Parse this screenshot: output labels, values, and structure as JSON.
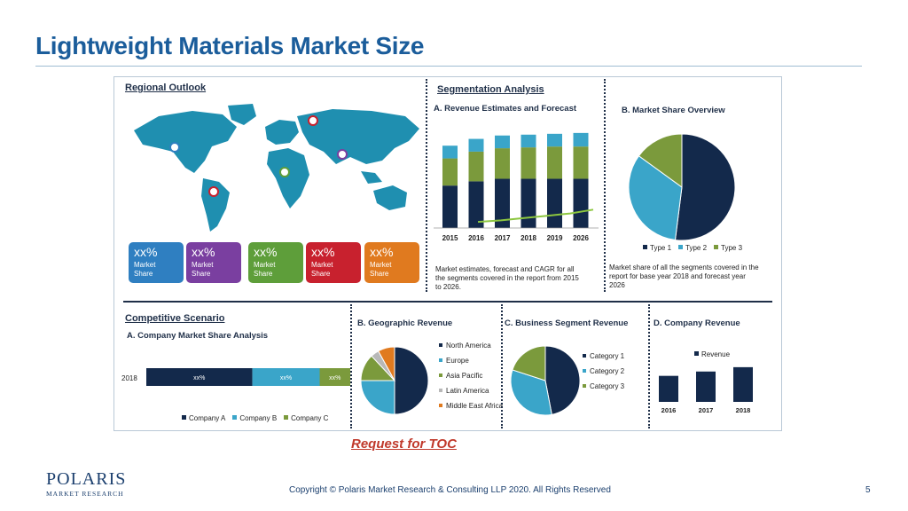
{
  "slide": {
    "title": "Lightweight Materials Market Size",
    "toc_link": "Request for TOC",
    "copyright": "Copyright © Polaris Market Research & Consulting LLP 2020. All Rights Reserved",
    "page_number": "5",
    "logo_main": "POLARIS",
    "logo_sub": "MARKET RESEARCH"
  },
  "regional": {
    "heading": "Regional Outlook",
    "tiles": [
      {
        "value": "xx%",
        "label_1": "Market",
        "label_2": "Share",
        "color": "#2f7fc1"
      },
      {
        "value": "xx%",
        "label_1": "Market",
        "label_2": "Share",
        "color": "#7a3fa0"
      },
      {
        "value": "xx%",
        "label_1": "Market",
        "label_2": "Share",
        "color": "#5e9e3a"
      },
      {
        "value": "xx%",
        "label_1": "Market",
        "label_2": "Share",
        "color": "#c8212e"
      },
      {
        "value": "xx%",
        "label_1": "Market",
        "label_2": "Share",
        "color": "#e07a1f"
      }
    ],
    "map_color": "#1f8fb0"
  },
  "segmentation": {
    "heading": "Segmentation Analysis",
    "revenue_title": "A. Revenue Estimates and Forecast",
    "revenue_caption": [
      "Market estimates, forecast and CAGR for all",
      "the segments covered in the report from 2015",
      "to 2026."
    ],
    "share_title": "B. Market Share Overview",
    "share_caption": [
      "Market share of all the segments covered in the",
      "report for base year 2018 and forecast year",
      "2026"
    ]
  },
  "competitive": {
    "heading": "Competitive Scenario",
    "company_title": "A. Company Market Share Analysis",
    "geo_title": "B. Geographic Revenue",
    "business_title": "C. Business Segment Revenue",
    "revenue_title": "D. Company Revenue"
  },
  "colors": {
    "navy": "#13294b",
    "blue": "#3aa5c9",
    "green": "#7b9a3c",
    "gray": "#b8b8b8",
    "orange": "#e07a1f"
  },
  "chart_data": [
    {
      "type": "bar",
      "id": "revenue_forecast",
      "title": "A. Revenue Estimates and Forecast",
      "categories": [
        "2015",
        "2016",
        "2017",
        "2018",
        "2019",
        "2026"
      ],
      "series": [
        {
          "values": [
            50,
            55,
            58,
            58,
            58,
            58
          ]
        },
        {
          "values": [
            32,
            35,
            36,
            37,
            38,
            38
          ]
        },
        {
          "values": [
            15,
            15,
            15,
            15,
            15,
            16
          ]
        }
      ],
      "trend": [
        8,
        10,
        13,
        16,
        19,
        24
      ],
      "ylim": [
        0,
        115
      ]
    },
    {
      "type": "pie",
      "id": "market_share",
      "title": "B. Market Share Overview",
      "labels": [
        "Type 1",
        "Type 2",
        "Type 3"
      ],
      "values": [
        52,
        33,
        15
      ]
    },
    {
      "type": "bar",
      "id": "company_share",
      "title": "A. Company Market Share Analysis",
      "categories": [
        "2018"
      ],
      "series": [
        {
          "name": "Company A",
          "values": [
            52
          ],
          "label": "xx%"
        },
        {
          "name": "Company B",
          "values": [
            33
          ],
          "label": "xx%"
        },
        {
          "name": "Company C",
          "values": [
            15
          ],
          "label": "xx%"
        }
      ],
      "orientation": "horizontal-stacked"
    },
    {
      "type": "pie",
      "id": "geographic_revenue",
      "title": "B. Geographic Revenue",
      "labels": [
        "North America",
        "Europe",
        "Asia Pacific",
        "Latin America",
        "Middle East Africa"
      ],
      "values": [
        50,
        25,
        13,
        4,
        8
      ]
    },
    {
      "type": "pie",
      "id": "business_segment",
      "title": "C. Business Segment Revenue",
      "labels": [
        "Category 1",
        "Category 2",
        "Category 3"
      ],
      "values": [
        47,
        33,
        20
      ]
    },
    {
      "type": "bar",
      "id": "company_revenue",
      "title": "D. Company Revenue",
      "categories": [
        "2016",
        "2017",
        "2018"
      ],
      "series": [
        {
          "name": "Revenue",
          "values": [
            30,
            35,
            40
          ]
        }
      ],
      "ylim": [
        0,
        45
      ]
    }
  ]
}
